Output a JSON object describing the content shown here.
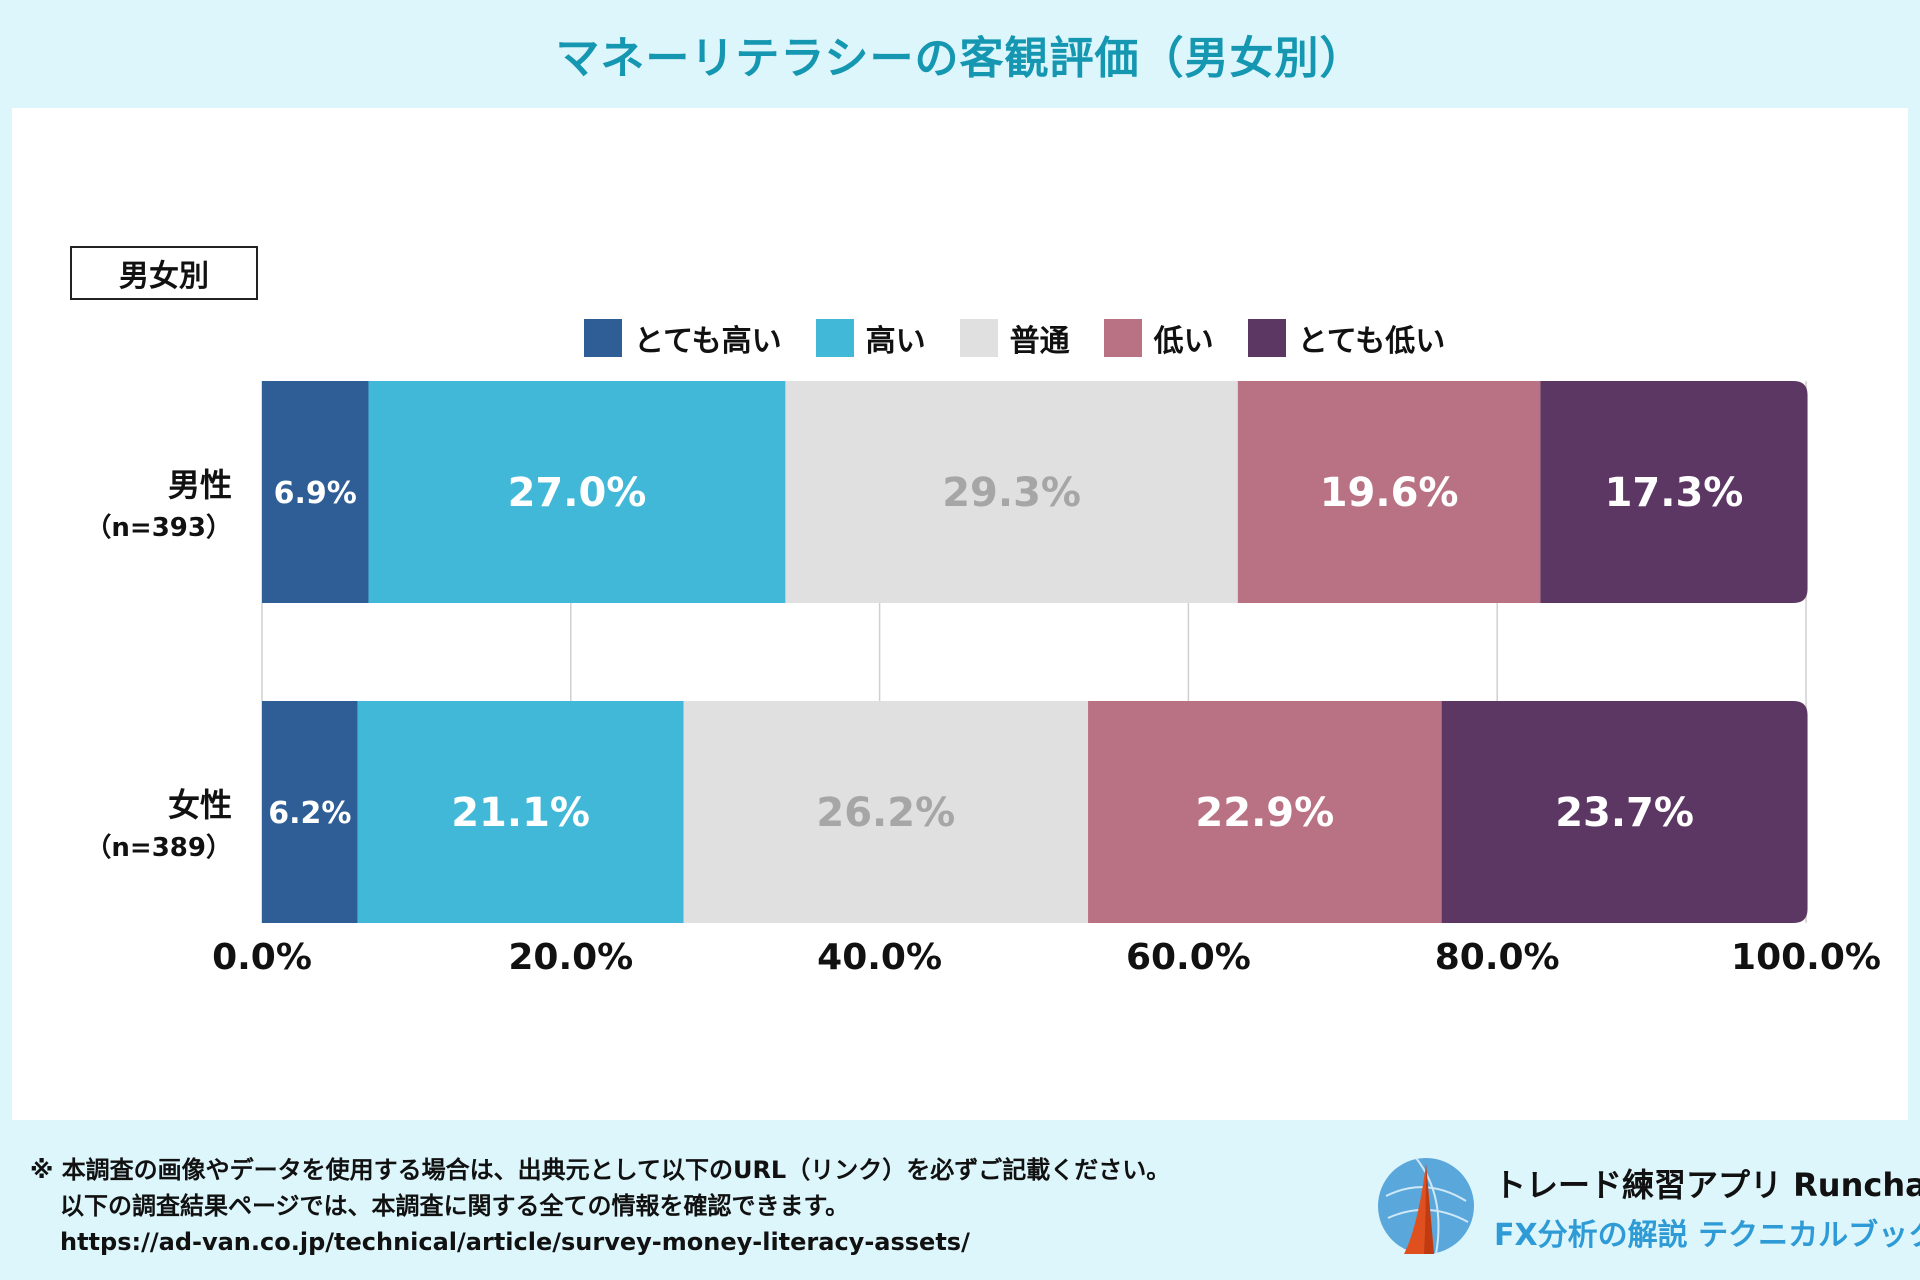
{
  "title": "マネーリテラシーの客観評価（男女別）",
  "group_label": "男女別",
  "chart_data": {
    "type": "bar",
    "orientation": "horizontal",
    "stacked": "percent",
    "categories": [
      {
        "label": "男性",
        "n": "（n=393）"
      },
      {
        "label": "女性",
        "n": "（n=389）"
      }
    ],
    "series": [
      {
        "name": "とても高い",
        "color": "#2e5e95",
        "values": [
          6.9,
          6.2
        ],
        "value_labels": [
          "6.9%",
          "6.2%"
        ],
        "label_color": "#ffffff"
      },
      {
        "name": "高い",
        "color": "#41b8d7",
        "values": [
          27.0,
          21.1
        ],
        "value_labels": [
          "27.0%",
          "21.1%"
        ],
        "label_color": "#ffffff"
      },
      {
        "name": "普通",
        "color": "#e0e0e0",
        "values": [
          29.3,
          26.2
        ],
        "value_labels": [
          "29.3%",
          "26.2%"
        ],
        "label_color": "#a6a6a6"
      },
      {
        "name": "低い",
        "color": "#b97283",
        "values": [
          19.6,
          22.9
        ],
        "value_labels": [
          "19.6%",
          "22.9%"
        ],
        "label_color": "#ffffff"
      },
      {
        "name": "とても低い",
        "color": "#5c3764",
        "values": [
          17.3,
          23.7
        ],
        "value_labels": [
          "17.3%",
          "23.7%"
        ],
        "label_color": "#ffffff"
      }
    ],
    "xlim": [
      0,
      100
    ],
    "x_ticks": [
      "0.0%",
      "20.0%",
      "40.0%",
      "60.0%",
      "80.0%",
      "100.0%"
    ],
    "grid": true,
    "legend_position": "top"
  },
  "footer": {
    "note_line1": "※ 本調査の画像やデータを使用する場合は、出典元として以下のURL（リンク）を必ずご記載ください。",
    "note_line2": "以下の調査結果ページでは、本調査に関する全ての情報を確認できます。",
    "url": "https://ad-van.co.jp/technical/article/survey-money-literacy-assets/"
  },
  "brand": {
    "name": "トレード練習アプリ Runcha",
    "subtitle": "FX分析の解説 テクニカルブック"
  }
}
